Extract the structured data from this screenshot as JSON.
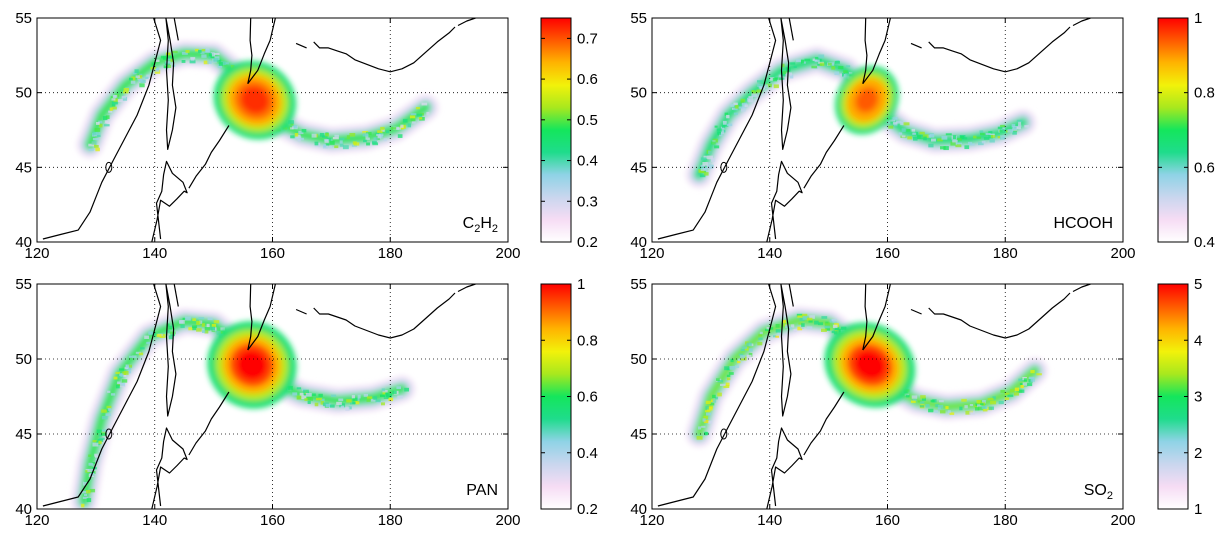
{
  "figure": {
    "background": "#ffffff",
    "colormap": [
      "#ffffff",
      "#f6dcf4",
      "#c9d6ee",
      "#8fd3e6",
      "#1fdc8c",
      "#14e65c",
      "#a8e81e",
      "#f2f20a",
      "#ffb400",
      "#ff5a00",
      "#ff0000"
    ]
  },
  "chart_data": [
    {
      "type": "heatmap",
      "species_label": "C2H2",
      "species_base": "C",
      "species_parts": [
        {
          "t": "C",
          "sub": false
        },
        {
          "t": "2",
          "sub": true
        },
        {
          "t": "H",
          "sub": false
        },
        {
          "t": "2",
          "sub": true
        }
      ],
      "xlim": [
        120,
        200
      ],
      "ylim": [
        40,
        55
      ],
      "xticks": [
        "120",
        "140",
        "160",
        "180",
        "200"
      ],
      "yticks": [
        "40",
        "45",
        "50",
        "55"
      ],
      "colorbar": {
        "range": [
          0.2,
          0.75
        ],
        "ticks": [
          "0.2",
          "0.3",
          "0.4",
          "0.5",
          "0.6",
          "0.7"
        ],
        "tick_values": [
          0.2,
          0.3,
          0.4,
          0.5,
          0.6,
          0.7
        ]
      },
      "plume": {
        "path": [
          [
            129,
            46.5
          ],
          [
            131,
            48.5
          ],
          [
            135,
            50.5
          ],
          [
            140,
            52.0
          ],
          [
            145,
            52.6
          ],
          [
            150,
            52.5
          ],
          [
            154,
            51.2
          ],
          [
            157,
            49.5
          ],
          [
            160,
            48.2
          ],
          [
            165,
            47.2
          ],
          [
            170,
            46.8
          ],
          [
            176,
            47.0
          ],
          [
            181,
            47.6
          ],
          [
            186,
            49.0
          ]
        ],
        "hot_center": [
          157,
          49.5
        ],
        "hot_extent": [
          4.5,
          1.6
        ],
        "intensity": 0.95,
        "spread": 0.6
      }
    },
    {
      "type": "heatmap",
      "species_label": "HCOOH",
      "species_parts": [
        {
          "t": "HCOOH",
          "sub": false
        }
      ],
      "xlim": [
        120,
        200
      ],
      "ylim": [
        40,
        55
      ],
      "xticks": [
        "120",
        "140",
        "160",
        "180",
        "200"
      ],
      "yticks": [
        "40",
        "45",
        "50",
        "55"
      ],
      "colorbar": {
        "range": [
          0.4,
          1.0
        ],
        "ticks": [
          "0.4",
          "0.6",
          "0.8",
          "1"
        ],
        "tick_values": [
          0.4,
          0.6,
          0.8,
          1.0
        ]
      },
      "plume": {
        "path": [
          [
            128,
            44.5
          ],
          [
            130,
            46.5
          ],
          [
            133,
            48.5
          ],
          [
            137,
            50.0
          ],
          [
            142,
            51.5
          ],
          [
            148,
            52.2
          ],
          [
            153,
            51.5
          ],
          [
            156,
            50.0
          ],
          [
            159,
            48.6
          ],
          [
            163,
            47.4
          ],
          [
            168,
            46.8
          ],
          [
            174,
            46.9
          ],
          [
            179,
            47.3
          ],
          [
            183,
            48.0
          ]
        ],
        "hot_center": [
          156.5,
          49.5
        ],
        "hot_extent": [
          3.2,
          1.5
        ],
        "intensity": 0.9,
        "spread": 0.45
      }
    },
    {
      "type": "heatmap",
      "species_label": "PAN",
      "species_parts": [
        {
          "t": "PAN",
          "sub": false
        }
      ],
      "xlim": [
        120,
        200
      ],
      "ylim": [
        40,
        55
      ],
      "xticks": [
        "120",
        "140",
        "160",
        "180",
        "200"
      ],
      "yticks": [
        "40",
        "45",
        "50",
        "55"
      ],
      "colorbar": {
        "range": [
          0.2,
          1.0
        ],
        "ticks": [
          "0.2",
          "0.4",
          "0.6",
          "0.8",
          "1"
        ],
        "tick_values": [
          0.2,
          0.4,
          0.6,
          0.8,
          1.0
        ]
      },
      "plume": {
        "path": [
          [
            128,
            40.5
          ],
          [
            129,
            43.0
          ],
          [
            131,
            46.0
          ],
          [
            134,
            49.0
          ],
          [
            139,
            51.5
          ],
          [
            145,
            52.5
          ],
          [
            150,
            52.3
          ],
          [
            154,
            51.0
          ],
          [
            157,
            49.8
          ],
          [
            160,
            48.5
          ],
          [
            165,
            47.6
          ],
          [
            171,
            47.2
          ],
          [
            177,
            47.4
          ],
          [
            182,
            48.0
          ]
        ],
        "hot_center": [
          156.5,
          49.6
        ],
        "hot_extent": [
          4.8,
          1.8
        ],
        "intensity": 1.0,
        "spread": 0.6
      }
    },
    {
      "type": "heatmap",
      "species_label": "SO2",
      "species_parts": [
        {
          "t": "SO",
          "sub": false
        },
        {
          "t": "2",
          "sub": true
        }
      ],
      "xlim": [
        120,
        200
      ],
      "ylim": [
        40,
        55
      ],
      "xticks": [
        "120",
        "140",
        "160",
        "180",
        "200"
      ],
      "yticks": [
        "40",
        "45",
        "50",
        "55"
      ],
      "colorbar": {
        "range": [
          1,
          5
        ],
        "ticks": [
          "1",
          "2",
          "3",
          "4",
          "5"
        ],
        "tick_values": [
          1,
          2,
          3,
          4,
          5
        ]
      },
      "plume": {
        "path": [
          [
            128,
            45.0
          ],
          [
            130,
            47.5
          ],
          [
            134,
            50.0
          ],
          [
            139,
            51.8
          ],
          [
            145,
            52.6
          ],
          [
            150,
            52.4
          ],
          [
            154,
            51.2
          ],
          [
            157,
            49.6
          ],
          [
            160,
            48.3
          ],
          [
            165,
            47.2
          ],
          [
            170,
            46.8
          ],
          [
            176,
            47.0
          ],
          [
            181,
            47.8
          ],
          [
            185,
            49.2
          ]
        ],
        "hot_center": [
          157,
          49.6
        ],
        "hot_extent": [
          5.0,
          1.7
        ],
        "intensity": 1.0,
        "spread": 0.7
      }
    }
  ]
}
